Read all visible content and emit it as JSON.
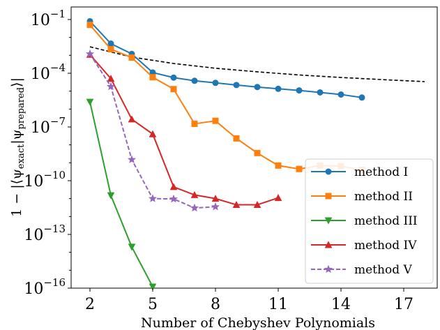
{
  "chart_data": {
    "type": "line",
    "title": "",
    "xlabel": "Number of Chebyshev Polynomials",
    "ylabel": "1 − |⟨ψexact|ψprepared⟩|",
    "ylabel_parts": {
      "prefix": "1 − |⟨ψ",
      "sub1": "exact",
      "mid": "|ψ",
      "sub2": "prepared",
      "suffix": "⟩|"
    },
    "xlim": [
      1.1,
      18.6
    ],
    "ylim_log10": [
      -16,
      -0.3
    ],
    "y_scale": "log",
    "x_ticks": [
      2,
      5,
      8,
      11,
      14,
      17
    ],
    "y_ticks_exponents": [
      -16,
      -13,
      -10,
      -7,
      -4,
      -1
    ],
    "y_tick_base": "10",
    "grid": false,
    "legend_position": "lower-right",
    "reference_line": {
      "style": "dashed",
      "color": "#000000",
      "x": [
        2,
        4,
        6,
        8,
        10,
        12,
        14,
        16,
        18
      ],
      "y": [
        0.003,
        0.0008,
        0.00035,
        0.00019,
        0.00012,
        8e-05,
        5.8e-05,
        4.4e-05,
        3.4e-05
      ]
    },
    "series": [
      {
        "name": "method I",
        "color": "#1f77b4",
        "marker": "circle",
        "dashed": false,
        "x": [
          2,
          3,
          4,
          5,
          6,
          7,
          8,
          9,
          10,
          11,
          12,
          13,
          14,
          15
        ],
        "y": [
          0.08,
          0.0045,
          0.0012,
          0.00011,
          5.7e-05,
          3.8e-05,
          2.9e-05,
          2.2e-05,
          1.7e-05,
          1.35e-05,
          1.1e-05,
          8.5e-06,
          6.5e-06,
          4.4e-06
        ]
      },
      {
        "name": "method II",
        "color": "#ff7f0e",
        "marker": "square",
        "dashed": false,
        "x": [
          2,
          3,
          4,
          5,
          6,
          7,
          8,
          9,
          10,
          11,
          12,
          13,
          14,
          15
        ],
        "y": [
          0.05,
          0.0022,
          0.00075,
          6e-05,
          1.3e-05,
          1.5e-07,
          2.2e-07,
          2.3e-08,
          3.5e-09,
          7e-10,
          4.5e-10,
          7e-10,
          6.5e-10,
          4e-10
        ]
      },
      {
        "name": "method III",
        "color": "#2ca02c",
        "marker": "triangle-down",
        "dashed": false,
        "x": [
          2,
          3,
          4,
          5
        ],
        "y": [
          2.5e-06,
          1.5e-11,
          2e-14,
          1.2e-16
        ]
      },
      {
        "name": "method IV",
        "color": "#d62728",
        "marker": "triangle-up",
        "dashed": false,
        "x": [
          2,
          3,
          4,
          5,
          6,
          7,
          8,
          9,
          10,
          11
        ],
        "y": [
          0.0011,
          5e-05,
          2.7e-07,
          4e-08,
          4.5e-11,
          1.6e-11,
          1e-11,
          4.5e-12,
          4.5e-12,
          1.1e-11
        ]
      },
      {
        "name": "method V",
        "color": "#9467bd",
        "marker": "star",
        "dashed": true,
        "x": [
          2,
          3,
          4,
          5,
          6,
          7,
          8
        ],
        "y": [
          0.0012,
          1.8e-05,
          1.5e-09,
          1e-11,
          9.5e-12,
          3e-12,
          3.5e-12
        ]
      }
    ]
  }
}
